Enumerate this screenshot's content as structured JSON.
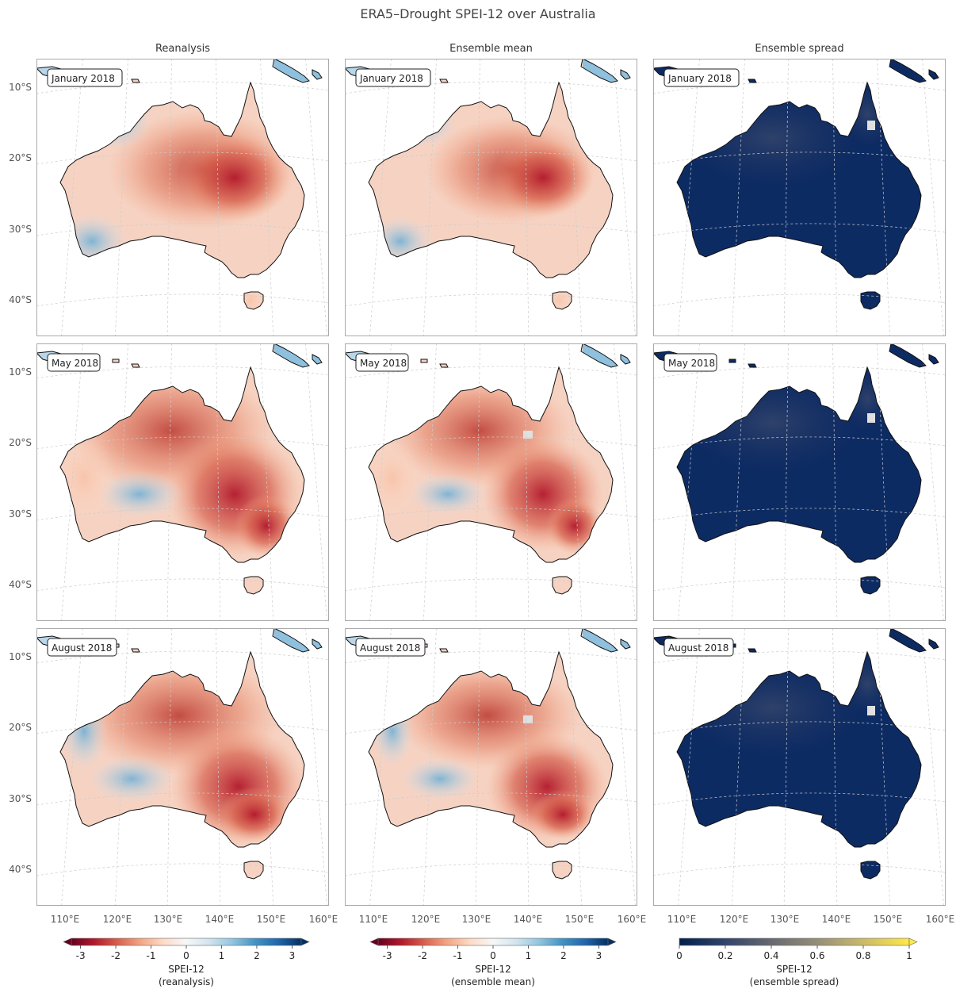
{
  "title": "ERA5–Drought SPEI-12 over Australia",
  "columns": [
    "Reanalysis",
    "Ensemble mean",
    "Ensemble spread"
  ],
  "rows": [
    "January 2018",
    "May 2018",
    "August 2018"
  ],
  "lat_ticks": [
    "10°S",
    "20°S",
    "30°S",
    "40°S"
  ],
  "lon_ticks": [
    "110°E",
    "120°E",
    "130°E",
    "140°E",
    "150°E",
    "160°E"
  ],
  "colorbars": [
    {
      "label_line1": "SPEI-12",
      "label_line2": "(reanalysis)",
      "ticks": [
        "-3",
        "-2",
        "-1",
        "0",
        "1",
        "2",
        "3"
      ],
      "colormap": [
        "#67001f",
        "#b2182b",
        "#d6604d",
        "#f4a582",
        "#fddbc7",
        "#f7f7f7",
        "#d1e5f0",
        "#92c5de",
        "#4393c3",
        "#2166ac",
        "#053061"
      ]
    },
    {
      "label_line1": "SPEI-12",
      "label_line2": "(ensemble mean)",
      "ticks": [
        "-3",
        "-2",
        "-1",
        "0",
        "1",
        "2",
        "3"
      ],
      "colormap": [
        "#67001f",
        "#b2182b",
        "#d6604d",
        "#f4a582",
        "#fddbc7",
        "#f7f7f7",
        "#d1e5f0",
        "#92c5de",
        "#4393c3",
        "#2166ac",
        "#053061"
      ]
    },
    {
      "label_line1": "SPEI-12",
      "label_line2": "(ensemble spread)",
      "ticks": [
        "0",
        "0.2",
        "0.4",
        "0.6",
        "0.8",
        "1"
      ],
      "colormap": [
        "#00204c",
        "#31446b",
        "#666970",
        "#958f78",
        "#cbba69",
        "#ffe945"
      ]
    }
  ],
  "colors": {
    "ocean": "#ffffff",
    "coast": "#111111",
    "grid": "#cccccc",
    "spread_land": "#0d2b63",
    "missing": "#e0e0e0"
  }
}
